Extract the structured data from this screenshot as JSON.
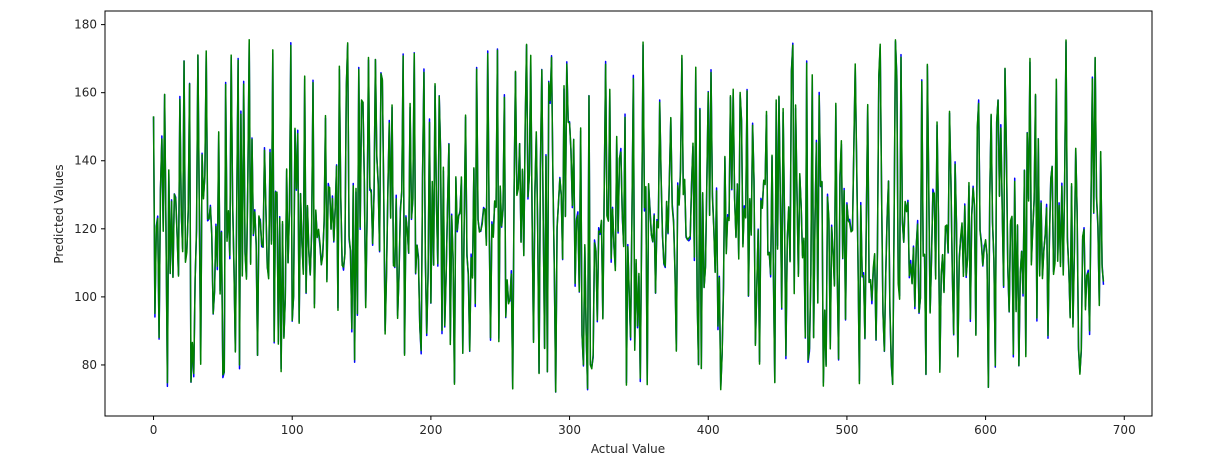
{
  "chart_data": {
    "type": "line",
    "title": "",
    "xlabel": "Actual Value",
    "ylabel": "Predicted Values",
    "xlim": [
      -35,
      720
    ],
    "ylim": [
      65,
      184
    ],
    "xticks": [
      0,
      100,
      200,
      300,
      400,
      500,
      600,
      700
    ],
    "yticks": [
      80,
      100,
      120,
      140,
      160,
      180
    ],
    "xtick_labels": [
      "0",
      "100",
      "200",
      "300",
      "400",
      "500",
      "600",
      "700"
    ],
    "ytick_labels": [
      "80",
      "100",
      "120",
      "140",
      "160",
      "180"
    ],
    "grid": false,
    "legend": "none",
    "n_points": 686,
    "series": [
      {
        "color": "#0000ff",
        "seed": 42,
        "values_summary": {
          "min": 70,
          "max": 179,
          "center": 120
        }
      },
      {
        "color": "#008000",
        "seed": 42,
        "values_summary": {
          "min": 71,
          "max": 178,
          "center": 120
        }
      }
    ]
  }
}
